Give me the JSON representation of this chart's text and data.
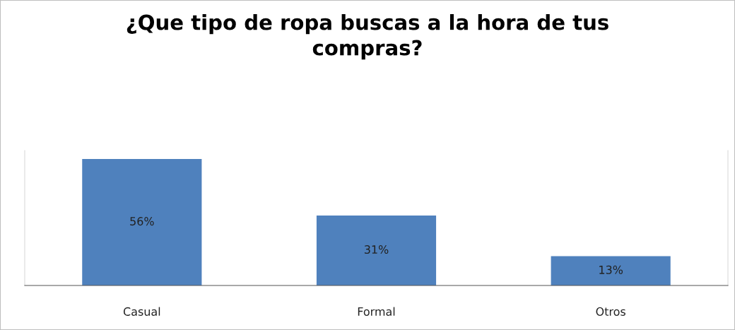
{
  "chart_data": {
    "type": "bar",
    "title": "¿Que tipo de ropa buscas a la hora de tus\ncompras?",
    "categories": [
      "Casual",
      "Formal",
      "Otros"
    ],
    "values": [
      56,
      31,
      13
    ],
    "value_labels": [
      "56%",
      "31%",
      "13%"
    ],
    "color": "#4f81bd",
    "grid": false,
    "legend": false,
    "tick_labels": "x"
  }
}
